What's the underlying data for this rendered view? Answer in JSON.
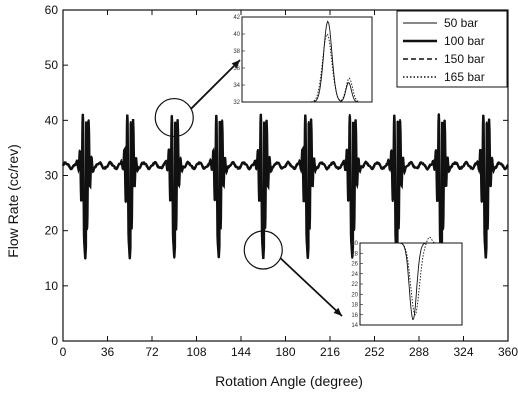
{
  "chart_data": {
    "type": "line",
    "title": "",
    "xlabel": "Rotation Angle (degree)",
    "ylabel": "Flow Rate (cc/rev)",
    "xlim": [
      0,
      360
    ],
    "ylim": [
      0,
      60
    ],
    "xticks": [
      0,
      36,
      72,
      108,
      144,
      180,
      216,
      252,
      288,
      324,
      360
    ],
    "yticks": [
      0,
      10,
      20,
      30,
      40,
      50,
      60
    ],
    "grid": false,
    "legend_position": "top-right",
    "baseline": 31.8,
    "spike_x": [
      18,
      54,
      90,
      126,
      162,
      198,
      234,
      270,
      306,
      342
    ],
    "spike_max": 41,
    "spike_min": 15,
    "series": [
      {
        "name": "50 bar",
        "style": "thin-solid"
      },
      {
        "name": "100 bar",
        "style": "thick-solid"
      },
      {
        "name": "150 bar",
        "style": "dashed"
      },
      {
        "name": "165 bar",
        "style": "dotted"
      }
    ],
    "insets": [
      {
        "position": "top",
        "yticks": [
          32,
          34,
          36,
          38,
          40,
          42
        ]
      },
      {
        "position": "bottom",
        "yticks": [
          14,
          16,
          18,
          20,
          22,
          24,
          26,
          28,
          30
        ]
      }
    ]
  }
}
